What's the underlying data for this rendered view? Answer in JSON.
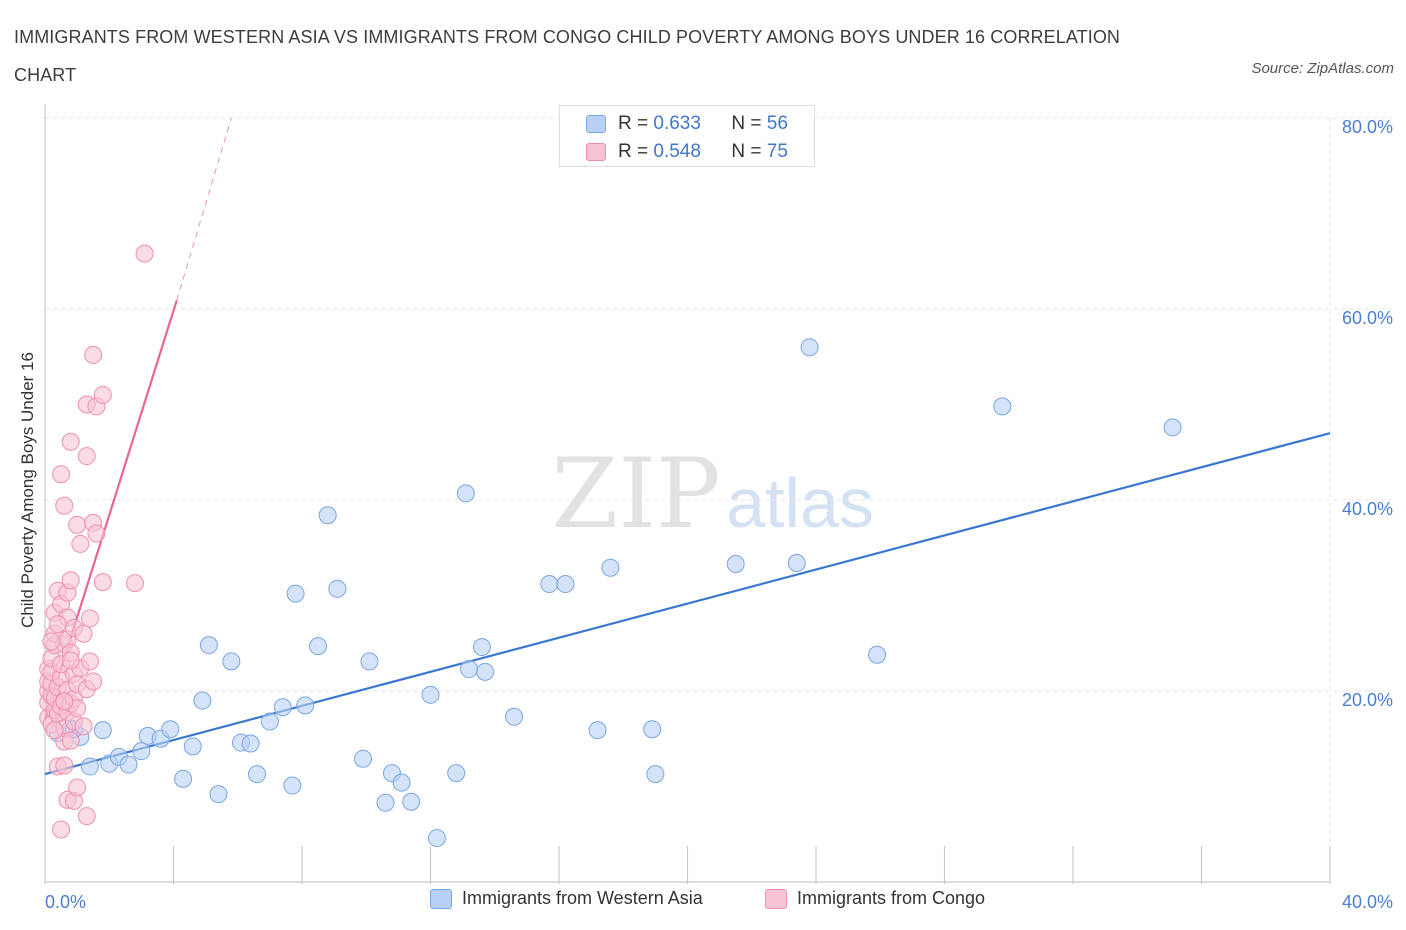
{
  "title": "IMMIGRANTS FROM WESTERN ASIA VS IMMIGRANTS FROM CONGO CHILD POVERTY AMONG BOYS UNDER 16 CORRELATION CHART",
  "source": "Source: ZipAtlas.com",
  "watermark": {
    "zip": "ZIP",
    "atlas": "atlas"
  },
  "legend_top": [
    {
      "r_label": "R =",
      "r_value": "0.633",
      "n_label": "N =",
      "n_value": "56"
    },
    {
      "r_label": "R =",
      "r_value": "0.548",
      "n_label": "N =",
      "n_value": "75"
    }
  ],
  "legend_bottom": [
    "Immigrants from Western Asia",
    "Immigrants from Congo"
  ],
  "colors": {
    "blue_fill": "#b8d0f3",
    "blue_stroke": "#7aa6e3",
    "blue_line": "#3a78d0",
    "pink_fill": "#f8c4d4",
    "pink_stroke": "#ee8fae",
    "pink_line": "#e8649a",
    "tick_text": "#4a7fd0",
    "grid": "#e3e3e3"
  },
  "chart_data": {
    "type": "scatter",
    "title": "IMMIGRANTS FROM WESTERN ASIA VS IMMIGRANTS FROM CONGO CHILD POVERTY AMONG BOYS UNDER 16 CORRELATION CHART",
    "xlabel": "",
    "ylabel": "Child Poverty Among Boys Under 16",
    "xlim": [
      0,
      40
    ],
    "ylim": [
      0,
      80
    ],
    "x_tick_labels": [
      "0.0%",
      "40.0%"
    ],
    "y_tick_labels": [
      "20.0%",
      "40.0%",
      "60.0%",
      "80.0%"
    ],
    "y_ticks": [
      20,
      40,
      60,
      80
    ],
    "grid": true,
    "legend_position": "top-center",
    "series": [
      {
        "name": "Immigrants from Western Asia",
        "color": "blue",
        "R": 0.633,
        "N": 56,
        "trend": {
          "x": [
            0,
            40
          ],
          "y": [
            11.3,
            47.0
          ],
          "dashed_extension": false
        },
        "points": [
          [
            0.4,
            15.6
          ],
          [
            0.8,
            16.0
          ],
          [
            1.1,
            15.2
          ],
          [
            1.4,
            12.1
          ],
          [
            1.8,
            15.9
          ],
          [
            2.0,
            12.4
          ],
          [
            2.3,
            13.1
          ],
          [
            2.6,
            12.3
          ],
          [
            3.0,
            13.7
          ],
          [
            3.2,
            15.3
          ],
          [
            3.6,
            15.0
          ],
          [
            3.9,
            16.0
          ],
          [
            4.3,
            10.8
          ],
          [
            4.6,
            14.2
          ],
          [
            4.9,
            19.0
          ],
          [
            5.1,
            24.8
          ],
          [
            5.4,
            9.2
          ],
          [
            5.8,
            23.1
          ],
          [
            6.1,
            14.6
          ],
          [
            6.4,
            14.5
          ],
          [
            6.6,
            11.3
          ],
          [
            7.0,
            16.8
          ],
          [
            7.4,
            18.3
          ],
          [
            7.7,
            10.1
          ],
          [
            7.8,
            30.2
          ],
          [
            8.1,
            18.5
          ],
          [
            8.5,
            24.7
          ],
          [
            8.8,
            38.4
          ],
          [
            9.1,
            30.7
          ],
          [
            9.9,
            12.9
          ],
          [
            10.1,
            23.1
          ],
          [
            10.6,
            8.3
          ],
          [
            10.8,
            11.4
          ],
          [
            11.1,
            10.4
          ],
          [
            11.4,
            8.4
          ],
          [
            12.0,
            19.6
          ],
          [
            12.2,
            4.6
          ],
          [
            12.8,
            11.4
          ],
          [
            13.1,
            40.7
          ],
          [
            13.2,
            22.3
          ],
          [
            13.6,
            24.6
          ],
          [
            13.7,
            22.0
          ],
          [
            14.6,
            17.3
          ],
          [
            15.7,
            31.2
          ],
          [
            16.2,
            31.2
          ],
          [
            17.2,
            15.9
          ],
          [
            17.6,
            32.9
          ],
          [
            18.9,
            16.0
          ],
          [
            19.0,
            11.3
          ],
          [
            21.5,
            33.3
          ],
          [
            23.4,
            33.4
          ],
          [
            23.8,
            56.0
          ],
          [
            25.9,
            23.8
          ],
          [
            29.8,
            49.8
          ],
          [
            35.1,
            47.6
          ],
          [
            0.9,
            16.0
          ]
        ]
      },
      {
        "name": "Immigrants from Congo",
        "color": "pink",
        "R": 0.548,
        "N": 75,
        "trend": {
          "x": [
            0,
            4.1
          ],
          "y": [
            17.0,
            60.9
          ],
          "dashed_extension": true,
          "dashed_to": {
            "x": 5.8,
            "y": 80.0
          }
        },
        "points": [
          [
            0.1,
            17.2
          ],
          [
            0.1,
            18.8
          ],
          [
            0.1,
            20.0
          ],
          [
            0.1,
            21.0
          ],
          [
            0.1,
            22.3
          ],
          [
            0.2,
            16.5
          ],
          [
            0.2,
            19.5
          ],
          [
            0.2,
            20.8
          ],
          [
            0.2,
            22.0
          ],
          [
            0.2,
            23.4
          ],
          [
            0.3,
            18.0
          ],
          [
            0.3,
            24.8
          ],
          [
            0.3,
            26.0
          ],
          [
            0.3,
            28.2
          ],
          [
            0.3,
            19.3
          ],
          [
            0.4,
            17.6
          ],
          [
            0.4,
            20.4
          ],
          [
            0.4,
            30.5
          ],
          [
            0.4,
            12.1
          ],
          [
            0.5,
            18.4
          ],
          [
            0.5,
            21.4
          ],
          [
            0.5,
            22.8
          ],
          [
            0.5,
            29.1
          ],
          [
            0.5,
            42.7
          ],
          [
            0.5,
            5.5
          ],
          [
            0.6,
            16.1
          ],
          [
            0.6,
            19.0
          ],
          [
            0.6,
            24.9
          ],
          [
            0.6,
            39.4
          ],
          [
            0.6,
            12.2
          ],
          [
            0.6,
            14.7
          ],
          [
            0.7,
            17.8
          ],
          [
            0.7,
            20.1
          ],
          [
            0.7,
            25.4
          ],
          [
            0.7,
            27.7
          ],
          [
            0.7,
            30.3
          ],
          [
            0.7,
            8.6
          ],
          [
            0.8,
            18.7
          ],
          [
            0.8,
            24.0
          ],
          [
            0.8,
            31.6
          ],
          [
            0.8,
            46.1
          ],
          [
            0.8,
            14.8
          ],
          [
            0.9,
            16.8
          ],
          [
            0.9,
            19.2
          ],
          [
            0.9,
            21.8
          ],
          [
            0.9,
            26.6
          ],
          [
            0.9,
            8.5
          ],
          [
            1.0,
            18.2
          ],
          [
            1.0,
            20.7
          ],
          [
            1.0,
            37.4
          ],
          [
            1.0,
            9.9
          ],
          [
            1.1,
            22.4
          ],
          [
            1.1,
            35.4
          ],
          [
            1.2,
            26.0
          ],
          [
            1.2,
            16.3
          ],
          [
            1.3,
            20.2
          ],
          [
            1.3,
            44.6
          ],
          [
            1.3,
            50.0
          ],
          [
            1.3,
            6.9
          ],
          [
            1.4,
            23.1
          ],
          [
            1.4,
            27.6
          ],
          [
            1.5,
            21.0
          ],
          [
            1.5,
            55.2
          ],
          [
            1.5,
            37.6
          ],
          [
            1.6,
            36.5
          ],
          [
            1.6,
            49.8
          ],
          [
            1.8,
            51.0
          ],
          [
            1.8,
            31.4
          ],
          [
            0.2,
            25.2
          ],
          [
            0.3,
            15.9
          ],
          [
            0.4,
            27.0
          ],
          [
            0.6,
            18.9
          ],
          [
            0.8,
            23.2
          ],
          [
            2.8,
            31.3
          ],
          [
            3.1,
            65.8
          ]
        ]
      }
    ]
  }
}
